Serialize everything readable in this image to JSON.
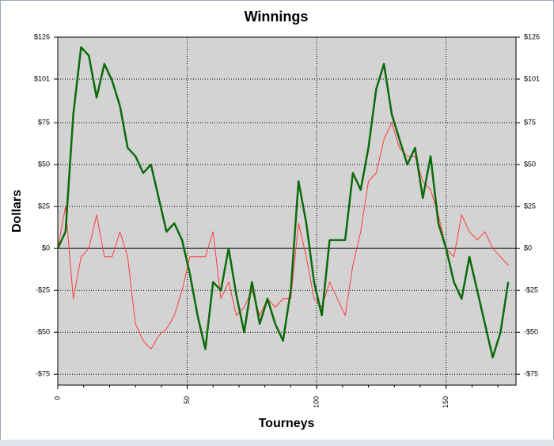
{
  "chart_data": {
    "type": "line",
    "title": "Winnings",
    "x_label": "Tourneys",
    "y_label": "Dollars",
    "x": [
      0,
      3,
      6,
      9,
      12,
      15,
      18,
      21,
      24,
      27,
      30,
      33,
      36,
      39,
      42,
      45,
      48,
      51,
      54,
      57,
      60,
      63,
      66,
      69,
      72,
      75,
      78,
      81,
      84,
      87,
      90,
      93,
      96,
      99,
      102,
      105,
      108,
      111,
      114,
      117,
      120,
      123,
      126,
      129,
      132,
      135,
      138,
      141,
      144,
      147,
      150,
      153,
      156,
      159,
      162,
      165,
      168,
      171,
      174
    ],
    "series": [
      {
        "color": "#ff3b3b",
        "width": 1,
        "values": [
          0,
          25,
          -30,
          -5,
          0,
          20,
          -5,
          -5,
          10,
          -5,
          -45,
          -55,
          -60,
          -52,
          -48,
          -40,
          -25,
          -5,
          -5,
          -5,
          10,
          -30,
          -20,
          -40,
          -35,
          -25,
          -40,
          -30,
          -35,
          -30,
          -30,
          15,
          -5,
          -30,
          -35,
          -20,
          -30,
          -40,
          -10,
          10,
          40,
          45,
          65,
          75,
          60,
          55,
          55,
          40,
          35,
          20,
          0,
          -5,
          20,
          10,
          5,
          10,
          0,
          -5,
          -10
        ]
      },
      {
        "color": "#0a6b0a",
        "width": 2.5,
        "values": [
          0,
          10,
          80,
          120,
          115,
          90,
          110,
          100,
          85,
          60,
          55,
          45,
          50,
          30,
          10,
          15,
          5,
          -15,
          -40,
          -60,
          -20,
          -25,
          0,
          -28,
          -50,
          -20,
          -45,
          -30,
          -45,
          -55,
          -25,
          40,
          15,
          -20,
          -40,
          5,
          5,
          5,
          45,
          35,
          60,
          95,
          110,
          80,
          65,
          50,
          60,
          30,
          55,
          15,
          0,
          -20,
          -30,
          -5,
          -25,
          -45,
          -65,
          -50,
          -20
        ]
      }
    ],
    "xlim": [
      0,
      177
    ],
    "ylim": [
      -81.5,
      126
    ],
    "xticks": [
      0,
      50,
      100,
      150
    ],
    "yticks": [
      {
        "value": 126,
        "label": "$126"
      },
      {
        "value": 101,
        "label": "$101"
      },
      {
        "value": 75,
        "label": "$75"
      },
      {
        "value": 50,
        "label": "$50"
      },
      {
        "value": 25,
        "label": "$25"
      },
      {
        "value": 0,
        "label": "$0"
      },
      {
        "value": -25,
        "label": "-$25"
      },
      {
        "value": -50,
        "label": "-$50"
      },
      {
        "value": -75,
        "label": "-$75"
      }
    ],
    "grid": true
  }
}
